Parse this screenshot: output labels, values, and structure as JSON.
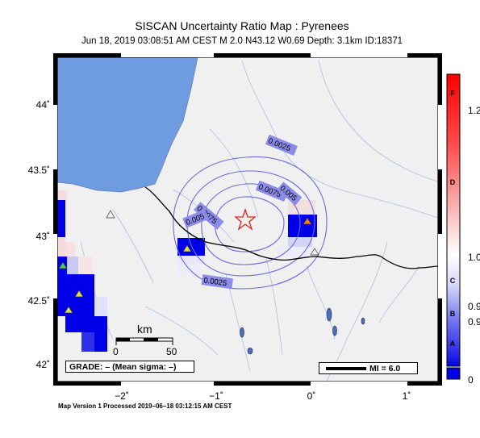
{
  "title": "SISCAN Uncertainty Ratio Map : Pyrenees",
  "subtitle": "Jun 18, 2019 03:08:51 AM CEST   M 2.0    N43.12 W0.69    Depth: 3.1km    ID:18371",
  "axes": {
    "lat_labels": [
      "44˚",
      "43.5˚",
      "43˚",
      "42.5˚",
      "42˚"
    ],
    "lon_labels": [
      "−2˚",
      "−1˚",
      "0˚",
      "1˚"
    ]
  },
  "contours": [
    "0.0025",
    "0.0075",
    "0.005",
    "0.0075",
    "0.005",
    "0.0025"
  ],
  "scale_bar": {
    "unit": "km",
    "start": "0",
    "end": "50"
  },
  "grade_box": "GRADE: – (Mean sigma: –)",
  "mi_legend": "MI = 6.0",
  "colorbar": {
    "grades": [
      "F",
      "D",
      "C",
      "B",
      "A"
    ],
    "values": [
      "1.2",
      "1.0",
      "0.9",
      "0.9",
      "0"
    ]
  },
  "footer": "Map Version 1 Processed 2019–06–18 03:12:15 AM CEST",
  "colors": {
    "sea": "#6f9be0",
    "land": "#f0f0f0",
    "cell_high": "#0000e8",
    "epicenter": "#e02020"
  }
}
